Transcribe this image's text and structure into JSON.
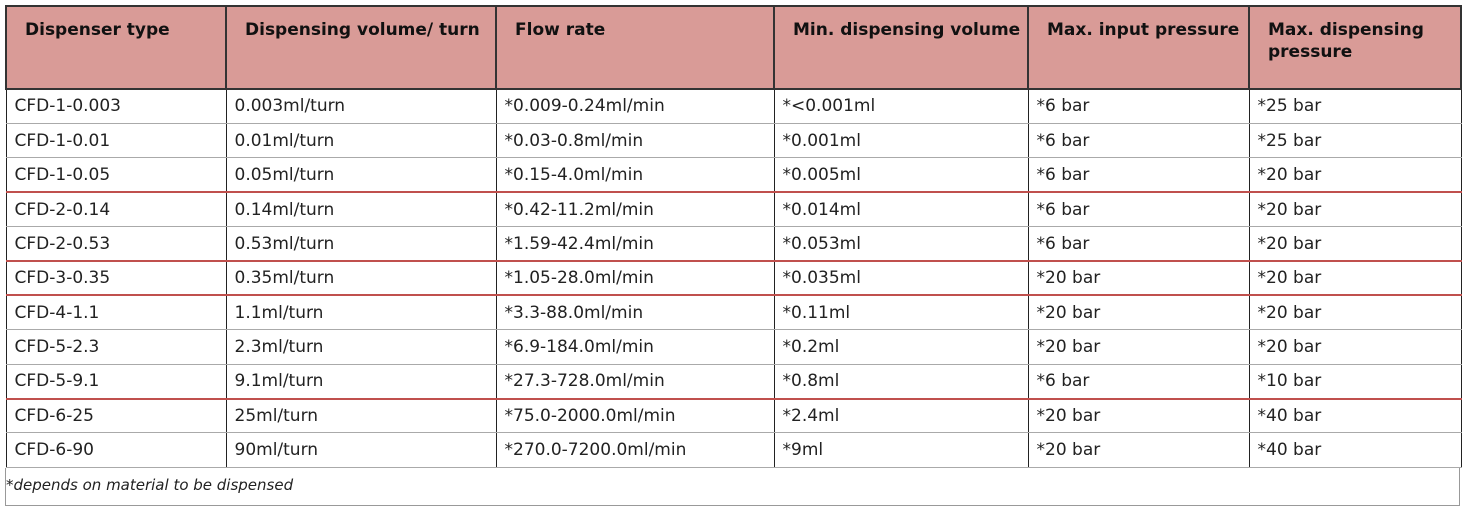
{
  "table": {
    "header": [
      "Dispenser type",
      "Dispensing volume/ turn",
      "Flow rate",
      "Min. dispensing volume",
      "Max. input pressure",
      "Max. dispensing pressure"
    ],
    "rows": [
      [
        "CFD-1-0.003",
        "0.003ml/turn",
        "*0.009-0.24ml/min",
        "*<0.001ml",
        "*6 bar",
        "*25 bar"
      ],
      [
        "CFD-1-0.01",
        "0.01ml/turn",
        "*0.03-0.8ml/min",
        "*0.001ml",
        "*6 bar",
        "*25 bar"
      ],
      [
        "CFD-1-0.05",
        "0.05ml/turn",
        "*0.15-4.0ml/min",
        "*0.005ml",
        "*6 bar",
        "*20 bar"
      ],
      [
        "CFD-2-0.14",
        "0.14ml/turn",
        "*0.42-11.2ml/min",
        "*0.014ml",
        "*6 bar",
        "*20 bar"
      ],
      [
        "CFD-2-0.53",
        "0.53ml/turn",
        "*1.59-42.4ml/min",
        "*0.053ml",
        "*6 bar",
        "*20 bar"
      ],
      [
        "CFD-3-0.35",
        "0.35ml/turn",
        "*1.05-28.0ml/min",
        "*0.035ml",
        "*20 bar",
        "*20 bar"
      ],
      [
        "CFD-4-1.1",
        "1.1ml/turn",
        "*3.3-88.0ml/min",
        "*0.11ml",
        "*20 bar",
        "*20 bar"
      ],
      [
        "CFD-5-2.3",
        "2.3ml/turn",
        "*6.9-184.0ml/min",
        "*0.2ml",
        "*20 bar",
        "*20 bar"
      ],
      [
        "CFD-5-9.1",
        "9.1ml/turn",
        "*27.3-728.0ml/min",
        "*0.8ml",
        "*6 bar",
        "*10 bar"
      ],
      [
        "CFD-6-25",
        "25ml/turn",
        "*75.0-2000.0ml/min",
        "*2.4ml",
        "*20 bar",
        "*40 bar"
      ],
      [
        "CFD-6-90",
        "90ml/turn",
        "*270.0-7200.0ml/min",
        "*9ml",
        "*20 bar",
        "*40 bar"
      ]
    ],
    "footnote": "*depends on material to be dispensed"
  }
}
